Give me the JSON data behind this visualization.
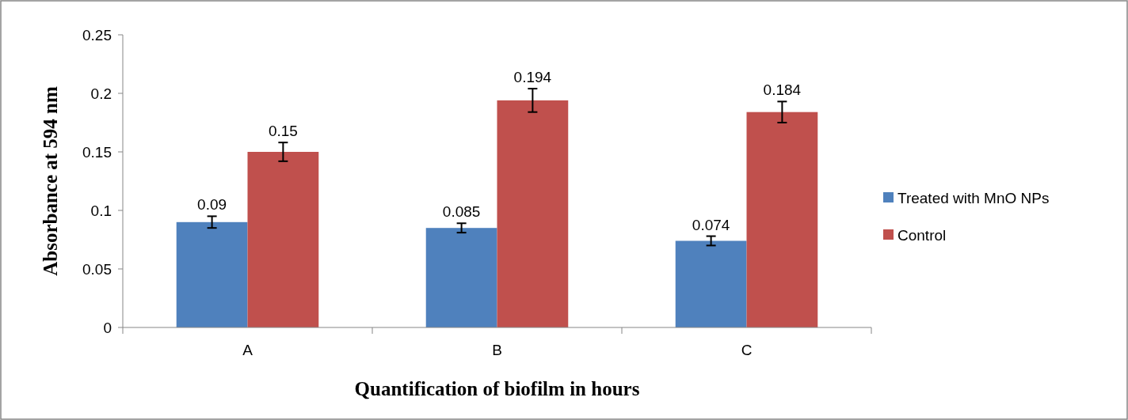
{
  "chart_data": {
    "type": "bar",
    "xlabel": "Quantification of biofilm in hours",
    "ylabel": "Absorbance at 594 nm",
    "categories": [
      "A",
      "B",
      "C"
    ],
    "series": [
      {
        "name": "Treated with MnO NPs",
        "color": "#4f81bd",
        "values": [
          0.09,
          0.085,
          0.074
        ],
        "errors": [
          0.005,
          0.004,
          0.004
        ]
      },
      {
        "name": "Control",
        "color": "#c0504d",
        "values": [
          0.15,
          0.194,
          0.184
        ],
        "errors": [
          0.008,
          0.01,
          0.009
        ]
      }
    ],
    "ylim": [
      0,
      0.25
    ],
    "yticks": [
      0,
      0.05,
      0.1,
      0.15,
      0.2,
      0.25
    ],
    "data_labels": true,
    "legend": "right",
    "grid": false
  }
}
